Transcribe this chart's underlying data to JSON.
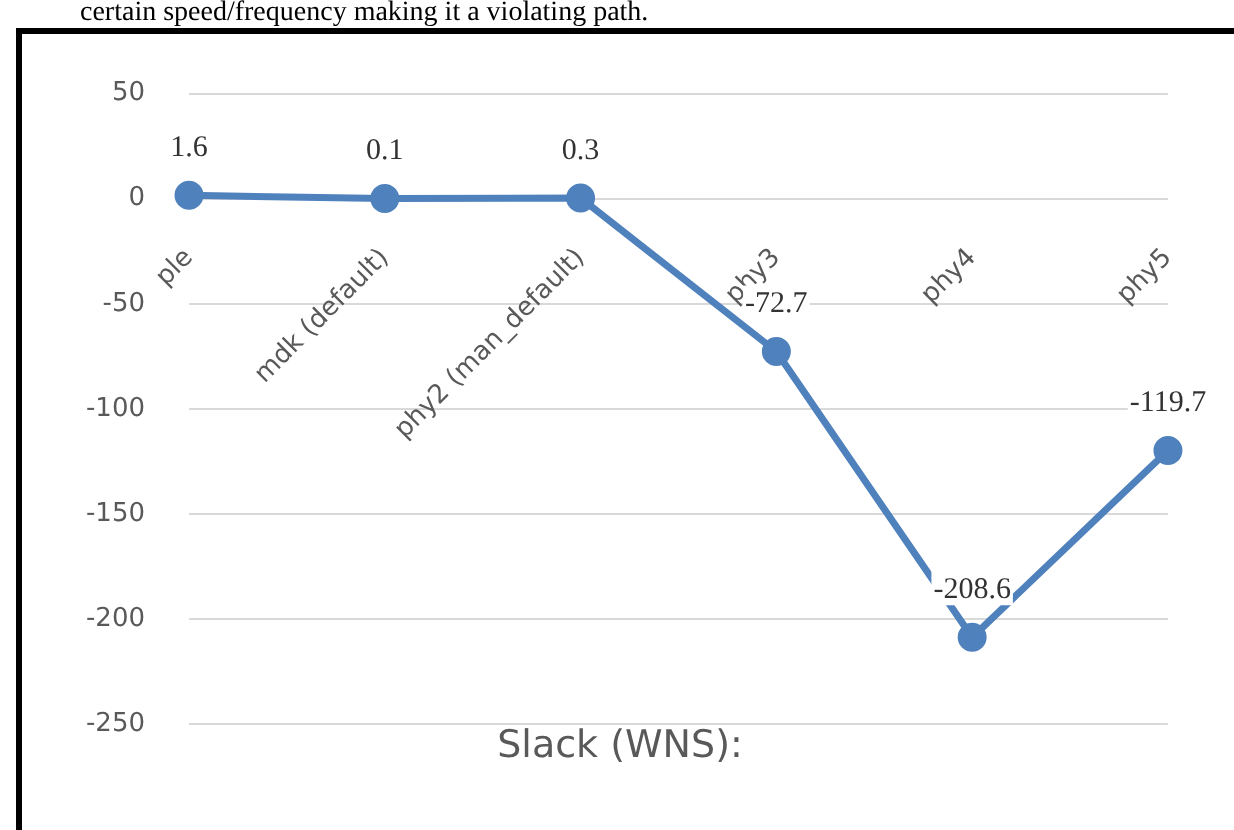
{
  "chart_data": {
    "type": "line",
    "title": "Slack (WNS):",
    "categories": [
      "ple",
      "mdk (default)",
      "phy2 (man_default)",
      "phy3",
      "phy4",
      "phy5"
    ],
    "series": [
      {
        "color": "#4f81bd",
        "values": [
          1.6,
          0.1,
          0.3,
          -72.7,
          -208.6,
          -119.7
        ]
      }
    ],
    "ylim": [
      -250,
      50
    ],
    "yticks": [
      -250,
      -200,
      -150,
      -100,
      -50,
      0,
      50
    ],
    "grid": "y",
    "legend": false,
    "marker": "circle",
    "line_style": "solid",
    "data_labels": true,
    "annotations": [
      "certain speed/frequency making it a violating path."
    ]
  }
}
